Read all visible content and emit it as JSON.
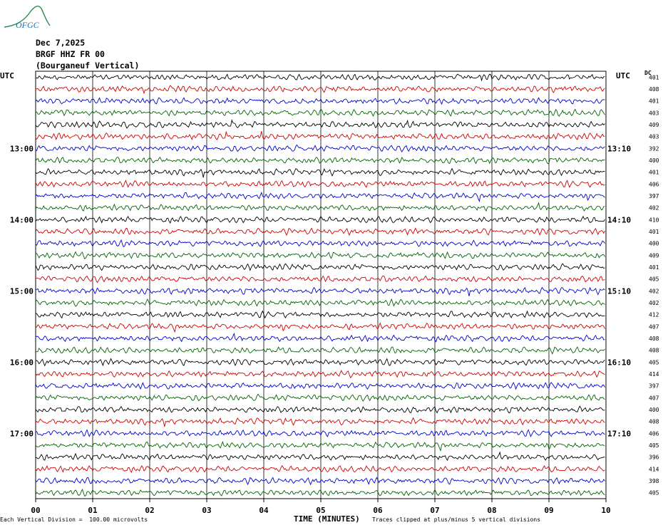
{
  "logo": {
    "text": "OFGC",
    "color": "#1a6fb0",
    "accent": "#2a8a4a"
  },
  "header": {
    "date": "Dec 7,2025",
    "station": "BRGF HHZ FR 00",
    "description": "(Bourganeuf Vertical)"
  },
  "left_title": "UTC",
  "right_title": "UTC",
  "dc_title": "DC",
  "footer": {
    "scale_note": "Each Vertical Division =  100.00 microvolts",
    "xlabel": "TIME (MINUTES)",
    "clip_note": "Traces clipped at plus/minus 5 vertical divisions"
  },
  "chart_data": {
    "type": "line",
    "title": "",
    "xlabel": "TIME (MINUTES)",
    "ylabel": "",
    "xlim": [
      0,
      10
    ],
    "x_tick_labels": [
      "00",
      "01",
      "02",
      "03",
      "04",
      "05",
      "06",
      "07",
      "08",
      "09",
      "10"
    ],
    "left_time_labels": [
      "13:00",
      "14:00",
      "15:00",
      "16:00",
      "17:00"
    ],
    "right_time_labels": [
      "13:10",
      "14:10",
      "15:10",
      "16:10",
      "17:10"
    ],
    "trace_colors": [
      "#000000",
      "#d00000",
      "#0000d0",
      "#006400"
    ],
    "dc_offsets": [
      401,
      408,
      401,
      403,
      409,
      403,
      392,
      400,
      401,
      406,
      397,
      402,
      410,
      401,
      400,
      409,
      401,
      405,
      402,
      402,
      412,
      407,
      408,
      408,
      405,
      414,
      397,
      407,
      400,
      408,
      406,
      405,
      396,
      414,
      398,
      405
    ],
    "grid": true
  }
}
